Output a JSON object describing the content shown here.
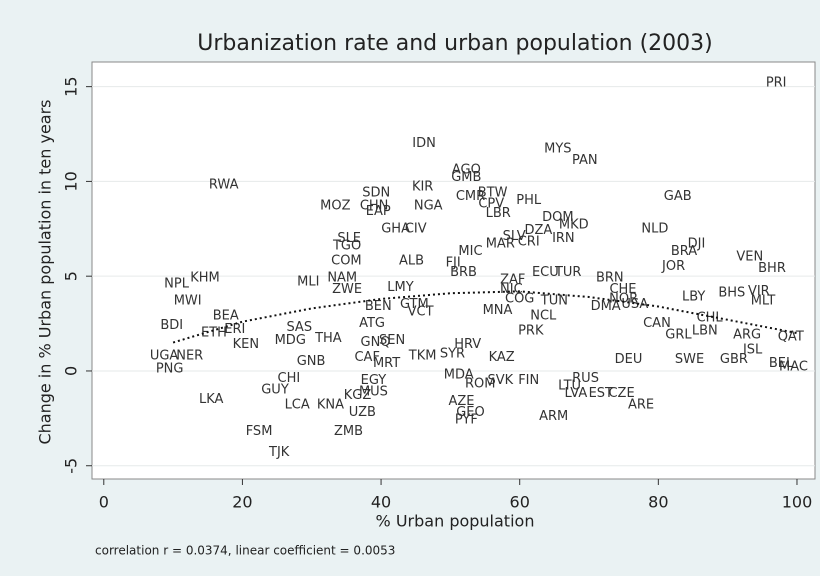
{
  "chart_data": {
    "type": "scatter",
    "title": "Urbanization rate and urban population (2003)",
    "x_label": "% Urban population",
    "y_label": "Change in % Urban population in ten years",
    "note": "correlation r = 0.0374, linear coefficient = 0.0053",
    "xlim": [
      -1.7,
      102.6
    ],
    "ylim": [
      -5.7,
      16.3
    ],
    "xticks": [
      0,
      20,
      40,
      60,
      80,
      100
    ],
    "yticks": [
      -5,
      0,
      5,
      10,
      15
    ],
    "grid": true,
    "color": "#333333",
    "labels": [
      "PRI",
      "IDN",
      "MYS",
      "PAN",
      "AGO",
      "GMB",
      "RWA",
      "KIR",
      "SDN",
      "BTW",
      "GAB",
      "CMR",
      "PHL",
      "MOZ",
      "CHN",
      "NGA",
      "CPV",
      "EAP",
      "LBR",
      "DOM",
      "NLD",
      "MKD",
      "GHA",
      "CIV",
      "DZA",
      "IRN",
      "SLV",
      "CRI",
      "DJI",
      "SLE",
      "MAR",
      "TGO",
      "BRA",
      "MIC",
      "ALB",
      "FJI",
      "COM",
      "VEN",
      "JOR",
      "BHR",
      "BRB",
      "NPL",
      "KHM",
      "MLI",
      "NAM",
      "ECU",
      "TUR",
      "ZAF",
      "BRN",
      "ZWE",
      "LMY",
      "CHE",
      "BHS",
      "VIR",
      "NIC",
      "MWI",
      "MLT",
      "LBY",
      "BEN",
      "COG",
      "TUN",
      "NOR",
      "USA",
      "GTM",
      "MNA",
      "DMA",
      "VCT",
      "BEA",
      "NCL",
      "CHL",
      "BDI",
      "ATG",
      "SAS",
      "LBN",
      "PRK",
      "ETH",
      "ERI",
      "CAN",
      "ARG",
      "QAT",
      "THA",
      "GNQ",
      "SEN",
      "KEN",
      "MDG",
      "HRV",
      "GRL",
      "ISL",
      "UGA",
      "NER",
      "GNB",
      "CAF",
      "MRT",
      "TKM",
      "SYR",
      "KAZ",
      "DEU",
      "SWE",
      "GBR",
      "BEL",
      "MAC",
      "PNG",
      "CHI",
      "EGY",
      "MDA",
      "ROM",
      "SVK",
      "FIN",
      "RUS",
      "LTU",
      "GUY",
      "MUS",
      "KGZ",
      "LVA",
      "EST",
      "CZE",
      "LKA",
      "LCA",
      "KNA",
      "AZE",
      "ARE",
      "UZB",
      "GEO",
      "PYF",
      "ARM",
      "FSM",
      "ZMB",
      "TJK"
    ],
    "x": [
      97.0,
      46.2,
      65.5,
      69.4,
      52.3,
      52.3,
      17.3,
      46.0,
      39.3,
      56.1,
      82.8,
      52.9,
      61.3,
      33.4,
      39.0,
      46.8,
      55.9,
      39.6,
      56.9,
      65.5,
      79.5,
      67.8,
      42.1,
      45.0,
      62.7,
      66.3,
      59.2,
      61.3,
      85.5,
      35.4,
      57.2,
      35.1,
      83.7,
      52.9,
      44.4,
      50.4,
      35.0,
      93.2,
      82.2,
      96.4,
      51.9,
      10.5,
      14.6,
      29.5,
      34.4,
      63.7,
      67.0,
      59.0,
      73.0,
      35.1,
      42.8,
      74.9,
      90.6,
      94.5,
      58.8,
      12.1,
      95.1,
      85.1,
      39.6,
      60.0,
      65.0,
      75.0,
      76.6,
      44.8,
      56.8,
      72.4,
      45.7,
      17.6,
      63.4,
      87.4,
      9.8,
      38.7,
      28.2,
      86.7,
      61.6,
      15.9,
      18.9,
      79.8,
      92.8,
      99.1,
      32.4,
      39.2,
      41.6,
      20.5,
      26.9,
      52.5,
      82.9,
      93.6,
      8.7,
      12.4,
      29.9,
      38.0,
      40.8,
      46.0,
      50.3,
      57.4,
      75.7,
      84.5,
      90.9,
      97.7,
      99.5,
      9.5,
      26.7,
      38.9,
      51.2,
      54.3,
      57.2,
      61.3,
      69.5,
      67.2,
      24.7,
      38.9,
      36.6,
      68.1,
      71.7,
      74.7,
      15.5,
      27.9,
      32.7,
      51.6,
      77.5,
      37.3,
      52.9,
      52.3,
      64.9,
      22.4,
      35.3,
      25.3
    ],
    "values": [
      15.2,
      12.0,
      11.7,
      11.1,
      10.6,
      10.2,
      9.8,
      9.7,
      9.4,
      9.4,
      9.2,
      9.2,
      9.0,
      8.7,
      8.7,
      8.7,
      8.8,
      8.4,
      8.3,
      8.1,
      7.5,
      7.7,
      7.5,
      7.5,
      7.4,
      7.0,
      7.1,
      6.8,
      6.7,
      7.0,
      6.7,
      6.6,
      6.3,
      6.3,
      5.8,
      5.7,
      5.8,
      6.0,
      5.5,
      5.4,
      5.2,
      4.6,
      4.9,
      4.7,
      4.9,
      5.2,
      5.2,
      4.8,
      4.9,
      4.3,
      4.4,
      4.3,
      4.1,
      4.2,
      4.3,
      3.7,
      3.7,
      3.9,
      3.4,
      3.8,
      3.7,
      3.8,
      3.5,
      3.5,
      3.2,
      3.4,
      3.1,
      2.9,
      2.9,
      2.8,
      2.4,
      2.5,
      2.3,
      2.1,
      2.1,
      2.0,
      2.2,
      2.5,
      1.9,
      1.8,
      1.7,
      1.5,
      1.6,
      1.4,
      1.6,
      1.4,
      1.9,
      1.1,
      0.8,
      0.8,
      0.5,
      0.7,
      0.4,
      0.8,
      0.9,
      0.7,
      0.6,
      0.6,
      0.6,
      0.4,
      0.2,
      0.1,
      -0.4,
      -0.5,
      -0.2,
      -0.7,
      -0.5,
      -0.5,
      -0.4,
      -0.8,
      -1.0,
      -1.1,
      -1.3,
      -1.2,
      -1.2,
      -1.2,
      -1.5,
      -1.8,
      -1.8,
      -1.6,
      -1.8,
      -2.2,
      -2.2,
      -2.6,
      -2.4,
      -3.2,
      -3.2,
      -4.3
    ],
    "fit": {
      "x": [
        10,
        20,
        30,
        40,
        50,
        60,
        70,
        80,
        90,
        100
      ],
      "y": [
        1.5,
        2.6,
        3.3,
        3.8,
        4.1,
        4.2,
        3.9,
        3.4,
        2.7,
        2.0
      ],
      "color": "#111111"
    }
  }
}
